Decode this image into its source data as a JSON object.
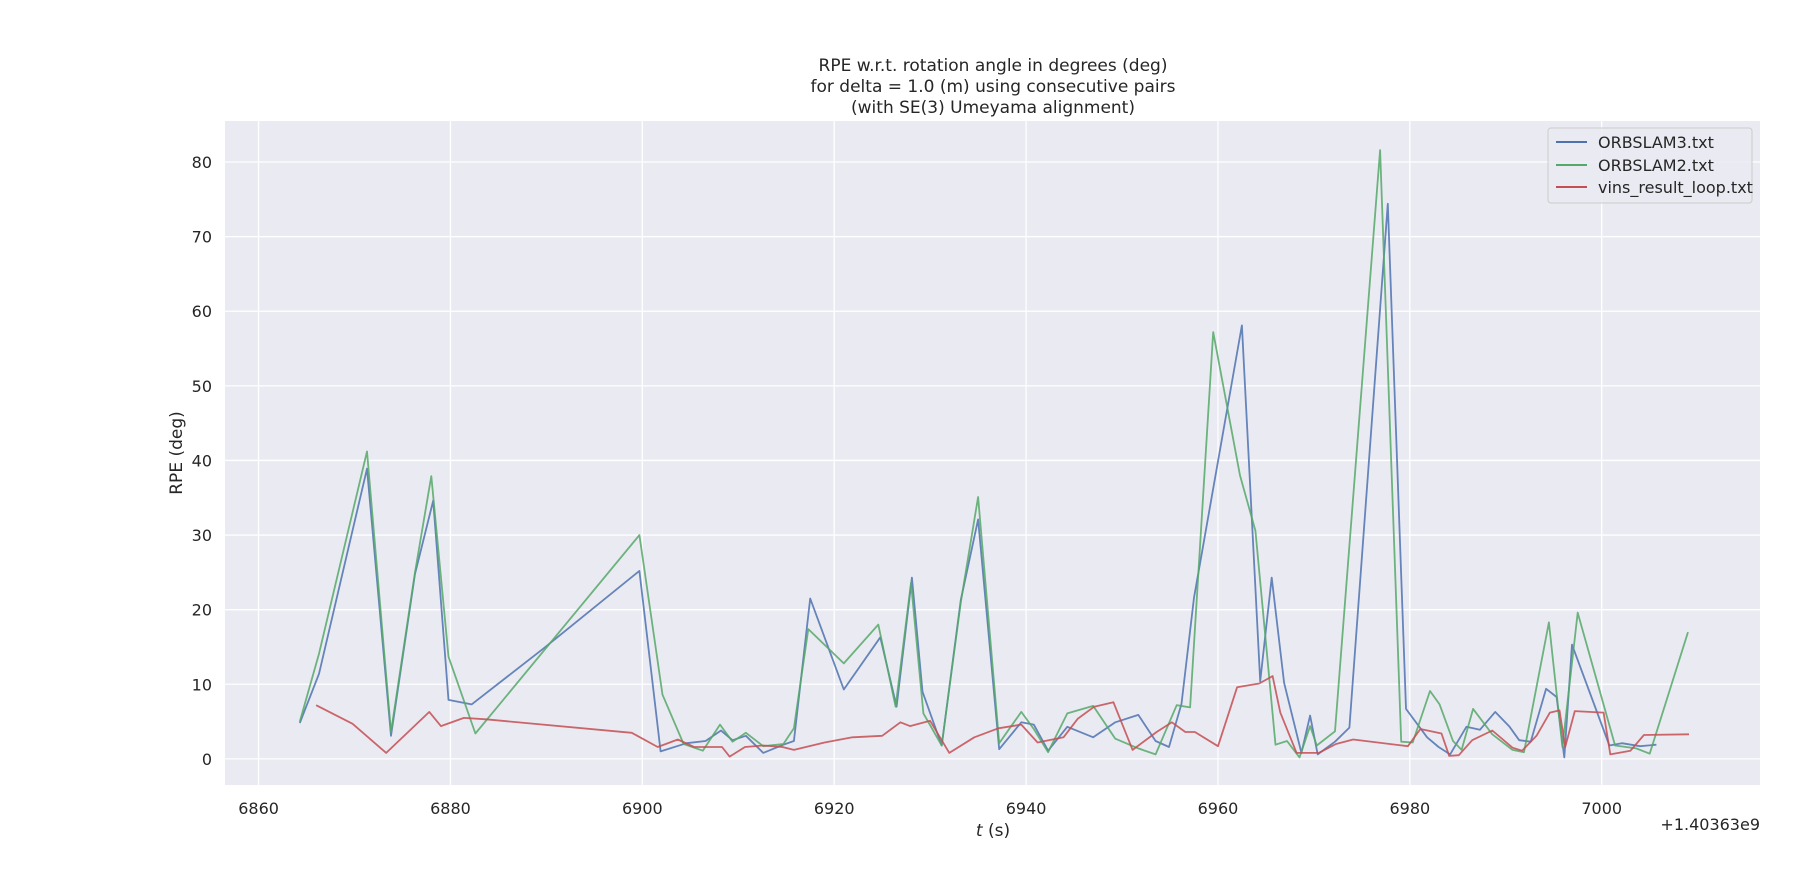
{
  "chart_data": {
    "type": "line",
    "title_lines": [
      "RPE w.r.t. rotation angle in degrees (deg)",
      "for delta = 1.0 (m) using consecutive pairs",
      "(with SE(3) Umeyama alignment)"
    ],
    "xlabel": "t (s)",
    "xlabel_var": "t",
    "xlabel_unit": " (s)",
    "ylabel": "RPE (deg)",
    "x_offset_label": "+1.40363e9",
    "xlim": [
      6856.5,
      7016.5
    ],
    "ylim": [
      -3.5,
      85.5
    ],
    "x_ticks": [
      6860,
      6880,
      6900,
      6920,
      6940,
      6960,
      6980,
      7000
    ],
    "y_ticks": [
      0,
      10,
      20,
      30,
      40,
      50,
      60,
      70,
      80
    ],
    "grid": true,
    "legend_position": "top-right",
    "series": [
      {
        "name": "ORBSLAM3.txt",
        "color": "#4c72b0",
        "x": [
          6864.3,
          6866.3,
          6871.3,
          6873.8,
          6876.3,
          6878.2,
          6879.8,
          6882.2,
          6889.8,
          6899.7,
          6901.9,
          6904.6,
          6906.6,
          6908.2,
          6909.4,
          6910.8,
          6912.6,
          6914.7,
          6915.8,
          6917.5,
          6921.0,
          6924.8,
          6926.5,
          6928.1,
          6929.2,
          6931.2,
          6933.2,
          6935.0,
          6937.2,
          6939.5,
          6940.8,
          6942.3,
          6944.3,
          6947.0,
          6949.3,
          6951.7,
          6953.5,
          6954.9,
          6956.2,
          6957.5,
          6962.5,
          6964.4,
          6965.6,
          6966.9,
          6968.7,
          6969.6,
          6970.4,
          6972.2,
          6973.7,
          6977.7,
          6979.6,
          6981.8,
          6983.0,
          6984.2,
          6985.9,
          6987.3,
          6988.9,
          6990.4,
          6991.4,
          6992.6,
          6994.2,
          6995.3,
          6996.1,
          6996.9,
          7000.8,
          7002.1,
          7004.0,
          7005.7
        ],
        "y": [
          4.8,
          11.4,
          38.9,
          3.1,
          24.8,
          34.6,
          7.9,
          7.3,
          14.9,
          25.2,
          1.0,
          2.1,
          2.4,
          3.8,
          2.5,
          3.1,
          0.8,
          1.9,
          2.4,
          21.5,
          9.3,
          16.3,
          7.0,
          24.3,
          9.0,
          1.8,
          21.3,
          32.1,
          1.3,
          4.9,
          4.6,
          1.1,
          4.3,
          2.9,
          4.9,
          5.9,
          2.4,
          1.6,
          7.4,
          21.6,
          58.1,
          10.4,
          24.3,
          10.2,
          0.8,
          5.8,
          0.6,
          2.3,
          4.2,
          74.4,
          6.7,
          2.9,
          1.6,
          0.6,
          4.3,
          3.9,
          6.3,
          4.3,
          2.5,
          2.3,
          9.4,
          8.3,
          0.2,
          15.3,
          1.8,
          2.1,
          1.7,
          1.9
        ]
      },
      {
        "name": "ORBSLAM2.txt",
        "color": "#55a868",
        "x": [
          6864.3,
          6866.3,
          6871.3,
          6873.8,
          6876.3,
          6878.0,
          6879.8,
          6882.6,
          6899.7,
          6902.1,
          6904.3,
          6906.3,
          6908.1,
          6909.4,
          6910.8,
          6912.6,
          6914.7,
          6915.8,
          6917.3,
          6921.0,
          6924.6,
          6926.4,
          6928.0,
          6929.3,
          6931.2,
          6933.2,
          6935.0,
          6937.2,
          6939.5,
          6940.8,
          6942.3,
          6944.3,
          6947.0,
          6949.3,
          6951.7,
          6953.5,
          6955.7,
          6957.1,
          6959.5,
          6962.3,
          6963.9,
          6966.0,
          6967.2,
          6968.5,
          6969.6,
          6970.3,
          6972.2,
          6976.9,
          6979.1,
          6980.3,
          6982.1,
          6983.1,
          6984.5,
          6985.4,
          6986.6,
          6988.6,
          6990.7,
          6991.9,
          6994.5,
          6995.9,
          6997.5,
          7001.4,
          7003.6,
          7005.0,
          7009.0
        ],
        "y": [
          5.0,
          14.1,
          41.2,
          3.6,
          25.0,
          37.9,
          13.7,
          3.4,
          30.0,
          8.6,
          2.0,
          1.1,
          4.6,
          2.3,
          3.5,
          1.7,
          2.0,
          4.1,
          17.4,
          12.8,
          18.0,
          7.0,
          23.6,
          6.1,
          1.8,
          21.0,
          35.1,
          2.1,
          6.3,
          4.0,
          0.9,
          6.1,
          7.1,
          2.7,
          1.4,
          0.6,
          7.2,
          6.9,
          57.2,
          38.0,
          30.6,
          1.9,
          2.4,
          0.2,
          4.4,
          1.8,
          3.7,
          81.6,
          2.3,
          2.2,
          9.1,
          7.3,
          2.4,
          1.2,
          6.7,
          3.3,
          1.2,
          0.9,
          18.3,
          1.6,
          19.6,
          1.8,
          1.4,
          0.7,
          17.0
        ]
      },
      {
        "name": "vins_result_loop.txt",
        "color": "#c44e52",
        "x": [
          6866.0,
          6869.8,
          6873.3,
          6877.8,
          6879.0,
          6881.4,
          6883.7,
          6898.9,
          6901.6,
          6903.7,
          6905.4,
          6907.0,
          6908.3,
          6909.1,
          6910.7,
          6912.6,
          6914.6,
          6915.8,
          6919.0,
          6921.9,
          6925.0,
          6926.9,
          6927.9,
          6930.0,
          6932.0,
          6934.6,
          6937.1,
          6939.5,
          6941.2,
          6943.9,
          6945.4,
          6947.1,
          6949.1,
          6951.1,
          6953.6,
          6955.2,
          6956.6,
          6957.6,
          6960.0,
          6962.0,
          6964.3,
          6965.7,
          6966.5,
          6968.2,
          6970.5,
          6972.3,
          6974.1,
          6979.8,
          6981.1,
          6983.3,
          6984.1,
          6985.1,
          6986.5,
          6988.6,
          6990.7,
          6991.7,
          6993.2,
          6994.6,
          6995.6,
          6996.2,
          6997.2,
          7000.2,
          7000.9,
          7003.0,
          7004.4,
          7009.1
        ],
        "y": [
          7.2,
          4.7,
          0.8,
          6.3,
          4.4,
          5.5,
          5.3,
          3.5,
          1.6,
          2.6,
          1.6,
          1.6,
          1.6,
          0.3,
          1.6,
          1.8,
          1.6,
          1.2,
          2.2,
          2.9,
          3.1,
          4.9,
          4.4,
          5.1,
          0.8,
          2.9,
          4.1,
          4.6,
          2.2,
          2.9,
          5.4,
          7.0,
          7.6,
          1.2,
          3.6,
          4.9,
          3.6,
          3.6,
          1.7,
          9.6,
          10.1,
          11.1,
          6.2,
          0.8,
          0.8,
          2.0,
          2.6,
          1.7,
          4.0,
          3.4,
          0.4,
          0.5,
          2.5,
          3.8,
          1.5,
          1.1,
          3.1,
          6.2,
          6.5,
          1.6,
          6.4,
          6.2,
          0.6,
          1.1,
          3.2,
          3.3
        ]
      }
    ]
  }
}
